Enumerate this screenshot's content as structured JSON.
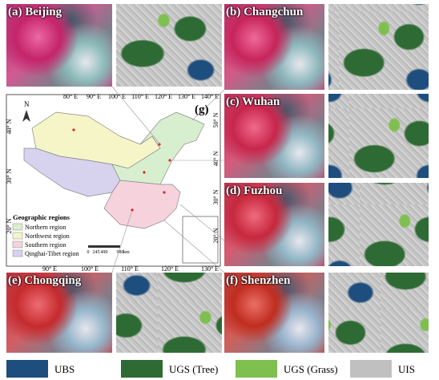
{
  "panels": [
    {
      "label": "(a) Beijing"
    },
    {
      "label": "(b) Changchun"
    },
    {
      "label": "(c) Wuhan"
    },
    {
      "label": "(d) Fuzhou"
    },
    {
      "label": "(e) Chongqing"
    },
    {
      "label": "(f) Shenzhen"
    }
  ],
  "map": {
    "label": "(g)",
    "north": "N",
    "top_ticks": [
      "80° E",
      "90° E",
      "100° E",
      "110° E",
      "120° E",
      "130° E",
      "140° E"
    ],
    "bottom_ticks": [
      "90° E",
      "100° E",
      "110° E",
      "120° E",
      "130° E"
    ],
    "left_ticks": [
      "40° N",
      "30° N",
      "20° N"
    ],
    "right_ticks": [
      "50° N",
      "40° N",
      "30° N",
      "20° N"
    ],
    "legend": {
      "title": "Geographic regions",
      "items": [
        "Northern region",
        "Northwest region",
        "Southern region",
        "Qinghai-Tibet region"
      ]
    },
    "scale": {
      "ticks": [
        "0",
        "245",
        "490",
        "980"
      ],
      "unit": "km"
    }
  },
  "legend": {
    "items": [
      "UBS",
      "UGS (Tree)",
      "UGS (Grass)",
      "UIS"
    ]
  }
}
